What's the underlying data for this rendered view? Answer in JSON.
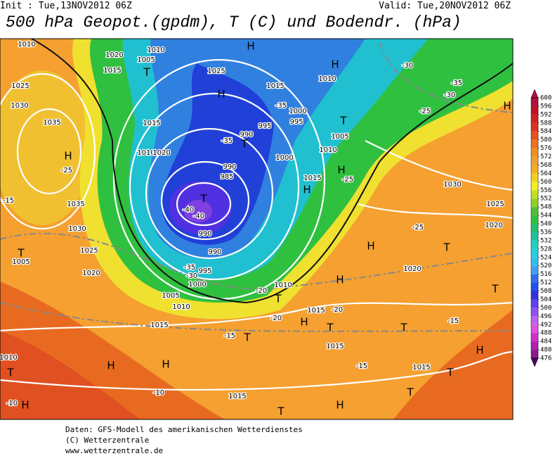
{
  "header": {
    "init": "Init : Tue,13NOV2012 06Z",
    "valid": "Valid: Tue,20NOV2012 06Z",
    "title": "500 hPa Geopot.(gpdm), T (C) und Bodendr. (hPa)"
  },
  "map_labels": [
    "1010",
    "1020",
    "1015",
    "1025",
    "1030",
    "1035",
    "H",
    "1035",
    "1030",
    "1025",
    "1020",
    "T",
    "1005",
    "1010",
    "T",
    "H",
    "H",
    "H",
    "1015",
    "1010",
    "1005",
    "1000",
    "995",
    "990",
    "990",
    "T",
    "985",
    "990",
    "T",
    "990",
    "995",
    "1000",
    "995",
    "1000",
    "1005",
    "1010",
    "T",
    "H",
    "1015",
    "H",
    "1010",
    "T",
    "1015",
    "H",
    "T",
    "1015",
    "T",
    "H",
    "H",
    "1020",
    "T",
    "1025",
    "1020",
    "1030",
    "H",
    "H",
    "H",
    "1025",
    "1010",
    "H",
    "1015",
    "T",
    "1005",
    "1010",
    "1015",
    "1010",
    "1020",
    "1015",
    "T",
    "H",
    "T",
    "H",
    "T",
    "1015",
    "T",
    "T",
    "-10",
    "-15",
    "-20",
    "-20",
    "-30",
    "-35",
    "-40",
    "-40",
    "-10",
    "-15",
    "-25",
    "-30",
    "-30",
    "-25",
    "-35",
    "-35",
    "-35",
    "-25",
    "-20",
    "-15",
    "-15",
    "-25"
  ],
  "colorbar": {
    "ticks": [
      476,
      480,
      484,
      488,
      492,
      496,
      500,
      504,
      508,
      512,
      516,
      520,
      524,
      528,
      532,
      536,
      540,
      544,
      548,
      552,
      556,
      560,
      564,
      568,
      572,
      576,
      580,
      584,
      588,
      592,
      596,
      600
    ],
    "colors": [
      "#8b1a8b",
      "#b020b0",
      "#d030d0",
      "#e050e0",
      "#c060f0",
      "#9050f0",
      "#6040f0",
      "#3030e0",
      "#2050f0",
      "#3070f0",
      "#40a0f0",
      "#30c0f0",
      "#20d0e0",
      "#20d0c0",
      "#20c0a0",
      "#20c070",
      "#30c040",
      "#50c030",
      "#90d020",
      "#c0e020",
      "#f0f020",
      "#f0d020",
      "#f0b020",
      "#f0a030",
      "#f09020",
      "#f07020",
      "#e85020",
      "#e03020",
      "#d02020",
      "#c01020",
      "#b01040"
    ]
  },
  "footer": {
    "line1": "Daten: GFS-Modell des amerikanischen Wetterdienstes",
    "line2": "(C) Wetterzentrale",
    "line3": "www.wetterzentrale.de"
  }
}
